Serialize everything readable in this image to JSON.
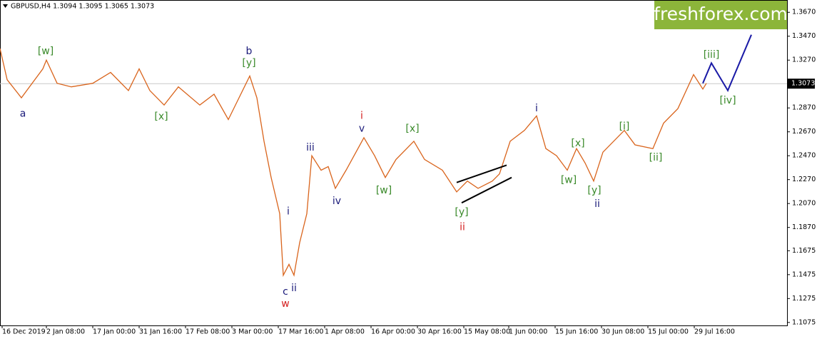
{
  "chart_data": {
    "type": "line",
    "header": "GBPUSD,H4  1.3094 1.3095 1.3065 1.3073",
    "brand": "freshforex.com",
    "brand_color": "#8cb53a",
    "current_price": 1.3073,
    "xlim": [
      0,
      1103
    ],
    "ylim": [
      1.105,
      1.3773
    ],
    "xticks": [
      {
        "value": 3,
        "label": "16 Dec 2019"
      },
      {
        "value": 65,
        "label": "2 Jan 08:00"
      },
      {
        "value": 130,
        "label": "17 Jan 00:00"
      },
      {
        "value": 195,
        "label": "31 Jan 16:00"
      },
      {
        "value": 260,
        "label": "17 Feb 08:00"
      },
      {
        "value": 325,
        "label": "3 Mar 00:00"
      },
      {
        "value": 390,
        "label": "17 Mar 16:00"
      },
      {
        "value": 455,
        "label": "1 Apr 08:00"
      },
      {
        "value": 520,
        "label": "16 Apr 00:00"
      },
      {
        "value": 585,
        "label": "30 Apr 16:00"
      },
      {
        "value": 650,
        "label": "15 May 08:00"
      },
      {
        "value": 713,
        "label": "1 Jun 00:00"
      },
      {
        "value": 778,
        "label": "15 Jun 16:00"
      },
      {
        "value": 843,
        "label": "30 Jun 08:00"
      },
      {
        "value": 908,
        "label": "15 Jul 00:00"
      },
      {
        "value": 973,
        "label": "29 Jul 16:00"
      }
    ],
    "yticks": [
      {
        "value": 1.367,
        "label": "1.3670"
      },
      {
        "value": 1.347,
        "label": "1.3470"
      },
      {
        "value": 1.327,
        "label": "1.3270"
      },
      {
        "value": 1.287,
        "label": "1.2870"
      },
      {
        "value": 1.267,
        "label": "1.2670"
      },
      {
        "value": 1.247,
        "label": "1.2470"
      },
      {
        "value": 1.227,
        "label": "1.2270"
      },
      {
        "value": 1.207,
        "label": "1.2070"
      },
      {
        "value": 1.187,
        "label": "1.1870"
      },
      {
        "value": 1.1675,
        "label": "1.1675"
      },
      {
        "value": 1.1475,
        "label": "1.1475"
      },
      {
        "value": 1.1275,
        "label": "1.1275"
      },
      {
        "value": 1.1075,
        "label": "1.1075"
      }
    ],
    "series": [
      {
        "color": "#d9641c",
        "x": [
          0,
          10,
          30,
          60,
          65,
          80,
          100,
          130,
          155,
          180,
          195,
          210,
          230,
          250,
          280,
          300,
          320,
          335,
          350,
          360,
          370,
          380,
          392,
          397,
          405,
          412,
          420,
          430,
          437,
          450,
          460,
          470,
          485,
          510,
          525,
          540,
          555,
          580,
          595,
          620,
          640,
          655,
          670,
          690,
          700,
          715,
          735,
          752,
          765,
          780,
          795,
          808,
          820,
          832,
          845,
          875,
          890,
          915,
          930,
          950,
          972,
          985,
          990
        ],
        "values": [
          1.3367,
          1.3106,
          1.2955,
          1.3197,
          1.327,
          1.3076,
          1.3046,
          1.3076,
          1.3167,
          1.3015,
          1.3197,
          1.3015,
          1.2894,
          1.3046,
          1.2894,
          1.2985,
          1.2773,
          1.2955,
          1.3137,
          1.2955,
          1.2591,
          1.2288,
          1.1985,
          1.147,
          1.1561,
          1.147,
          1.1743,
          1.1985,
          1.247,
          1.2349,
          1.2379,
          1.2197,
          1.2349,
          1.2621,
          1.247,
          1.2288,
          1.2439,
          1.2591,
          1.2439,
          1.2349,
          1.2167,
          1.2258,
          1.2197,
          1.2258,
          1.2318,
          1.2591,
          1.2682,
          1.2803,
          1.253,
          1.247,
          1.2349,
          1.253,
          1.2409,
          1.2258,
          1.25,
          1.2682,
          1.2561,
          1.253,
          1.2743,
          1.2864,
          1.3149,
          1.3028,
          1.3076
        ]
      }
    ],
    "forecast": {
      "color": "#1a1aa6",
      "x": [
        985,
        997,
        1020,
        1053
      ],
      "values": [
        1.3076,
        1.3246,
        1.3016,
        1.3482
      ]
    },
    "wedge": [
      {
        "x": [
          640,
          710
        ],
        "values": [
          1.2246,
          1.2391
        ]
      },
      {
        "x": [
          647,
          717
        ],
        "values": [
          1.2076,
          1.2288
        ]
      }
    ],
    "annotations": [
      {
        "text": "a",
        "x": 32,
        "value": 1.2822,
        "color": "#1a1a7a"
      },
      {
        "text": "[w]",
        "x": 64,
        "value": 1.3343,
        "color": "#3a8a2a"
      },
      {
        "text": "b",
        "x": 349,
        "value": 1.3343,
        "color": "#1a1a7a"
      },
      {
        "text": "[y]",
        "x": 349,
        "value": 1.3246,
        "color": "#3a8a2a"
      },
      {
        "text": "[x]",
        "x": 226,
        "value": 1.2797,
        "color": "#3a8a2a"
      },
      {
        "text": "c",
        "x": 400,
        "value": 1.1331,
        "color": "#1a1a7a"
      },
      {
        "text": "w",
        "x": 400,
        "value": 1.1228,
        "color": "#d42020"
      },
      {
        "text": "i",
        "x": 404,
        "value": 1.2003,
        "color": "#1a1a7a"
      },
      {
        "text": "ii",
        "x": 412,
        "value": 1.1361,
        "color": "#1a1a7a"
      },
      {
        "text": "iii",
        "x": 435,
        "value": 1.2537,
        "color": "#1a1a7a"
      },
      {
        "text": "iv",
        "x": 472,
        "value": 1.2088,
        "color": "#1a1a7a"
      },
      {
        "text": "i",
        "x": 507,
        "value": 1.2803,
        "color": "#d42020"
      },
      {
        "text": "v",
        "x": 507,
        "value": 1.2694,
        "color": "#1a1a7a"
      },
      {
        "text": "[w]",
        "x": 538,
        "value": 1.2179,
        "color": "#3a8a2a"
      },
      {
        "text": "[x]",
        "x": 578,
        "value": 1.2694,
        "color": "#3a8a2a"
      },
      {
        "text": "[y]",
        "x": 647,
        "value": 1.1997,
        "color": "#3a8a2a"
      },
      {
        "text": "ii",
        "x": 648,
        "value": 1.187,
        "color": "#d42020"
      },
      {
        "text": "i",
        "x": 752,
        "value": 1.2864,
        "color": "#1a1a7a"
      },
      {
        "text": "[w]",
        "x": 797,
        "value": 1.2264,
        "color": "#3a8a2a"
      },
      {
        "text": "[x]",
        "x": 810,
        "value": 1.2573,
        "color": "#3a8a2a"
      },
      {
        "text": "[y]",
        "x": 833,
        "value": 1.2179,
        "color": "#3a8a2a"
      },
      {
        "text": "ii",
        "x": 837,
        "value": 1.2064,
        "color": "#1a1a7a"
      },
      {
        "text": "[i]",
        "x": 875,
        "value": 1.2713,
        "color": "#3a8a2a"
      },
      {
        "text": "[ii]",
        "x": 919,
        "value": 1.2452,
        "color": "#3a8a2a"
      },
      {
        "text": "[iii]",
        "x": 997,
        "value": 1.3312,
        "color": "#3a8a2a"
      },
      {
        "text": "[iv]",
        "x": 1020,
        "value": 1.2931,
        "color": "#3a8a2a"
      }
    ]
  }
}
